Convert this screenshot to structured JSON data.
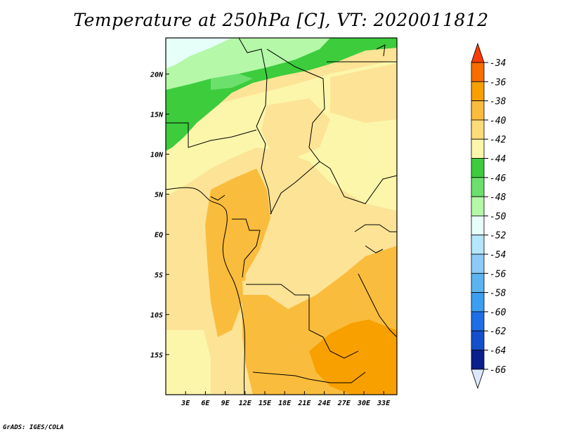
{
  "title": "Temperature at 250hPa [C], VT: 2020011812",
  "credit": "GrADS: IGES/COLA",
  "map": {
    "lat_labels": [
      "20N",
      "15N",
      "10N",
      "5N",
      "EQ",
      "5S",
      "10S",
      "15S"
    ],
    "lat_values": [
      20,
      15,
      10,
      5,
      0,
      -5,
      -10,
      -15
    ],
    "lon_labels": [
      "3E",
      "6E",
      "9E",
      "12E",
      "15E",
      "18E",
      "21E",
      "24E",
      "27E",
      "30E",
      "33E"
    ],
    "lon_values": [
      3,
      6,
      9,
      12,
      15,
      18,
      21,
      24,
      27,
      30,
      33
    ],
    "lon_range": [
      0,
      35
    ],
    "lat_range": [
      -20,
      24.5
    ]
  },
  "colorbar": {
    "levels": [
      "-34",
      "-36",
      "-38",
      "-40",
      "-42",
      "-44",
      "-46",
      "-48",
      "-50",
      "-52",
      "-54",
      "-56",
      "-58",
      "-60",
      "-62",
      "-64",
      "-66"
    ],
    "colors": [
      "#fa3c00",
      "#f86c00",
      "#f8a000",
      "#fabc3c",
      "#fcdc78",
      "#fcf6aa",
      "#3ccc3c",
      "#6ce06c",
      "#b4f8a8",
      "#e6fff8",
      "#b4e6fc",
      "#8ccaf8",
      "#5ab4f0",
      "#3c9ef0",
      "#1e6ee6",
      "#1450cc",
      "#0a1e8c"
    ],
    "top_color": "#fa3c00",
    "bottom_color": "#dce8fc"
  }
}
